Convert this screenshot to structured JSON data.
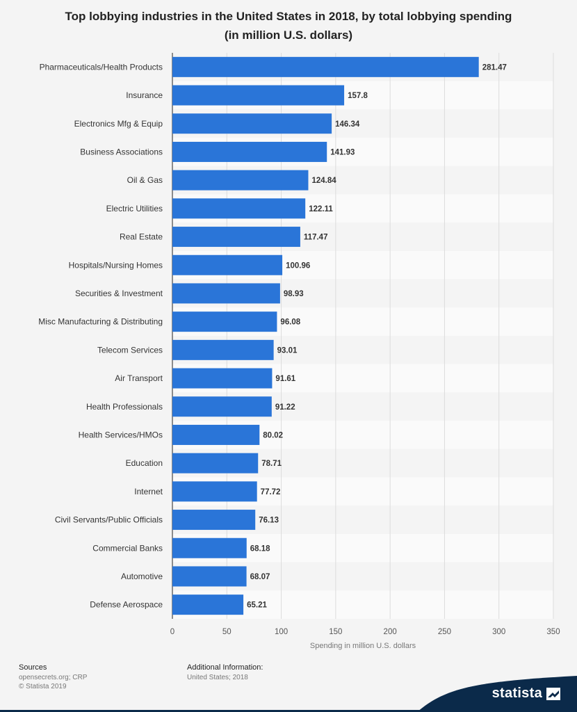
{
  "chart_data": {
    "type": "bar",
    "orientation": "horizontal",
    "title": "Top lobbying industries in the United States in 2018, by total lobbying spending",
    "subtitle": "(in million U.S. dollars)",
    "xlabel": "Spending in million U.S. dollars",
    "ylabel": "",
    "xlim": [
      0,
      350
    ],
    "xticks": [
      0,
      50,
      100,
      150,
      200,
      250,
      300,
      350
    ],
    "grid": true,
    "bar_color": "#2a75d8",
    "categories": [
      "Pharmaceuticals/Health Products",
      "Insurance",
      "Electronics Mfg & Equip",
      "Business Associations",
      "Oil & Gas",
      "Electric Utilities",
      "Real Estate",
      "Hospitals/Nursing Homes",
      "Securities & Investment",
      "Misc Manufacturing & Distributing",
      "Telecom Services",
      "Air Transport",
      "Health Professionals",
      "Health Services/HMOs",
      "Education",
      "Internet",
      "Civil Servants/Public Officials",
      "Commercial Banks",
      "Automotive",
      "Defense Aerospace"
    ],
    "values": [
      281.47,
      157.8,
      146.34,
      141.93,
      124.84,
      122.11,
      117.47,
      100.96,
      98.93,
      96.08,
      93.01,
      91.61,
      91.22,
      80.02,
      78.71,
      77.72,
      76.13,
      68.18,
      68.07,
      65.21
    ]
  },
  "footer": {
    "sources_heading": "Sources",
    "sources_lines": [
      "opensecrets.org; CRP",
      "© Statista 2019"
    ],
    "info_heading": "Additional Information:",
    "info_lines": [
      "United States; 2018"
    ]
  },
  "brand": {
    "name": "statista",
    "color": "#0b2a4a"
  }
}
